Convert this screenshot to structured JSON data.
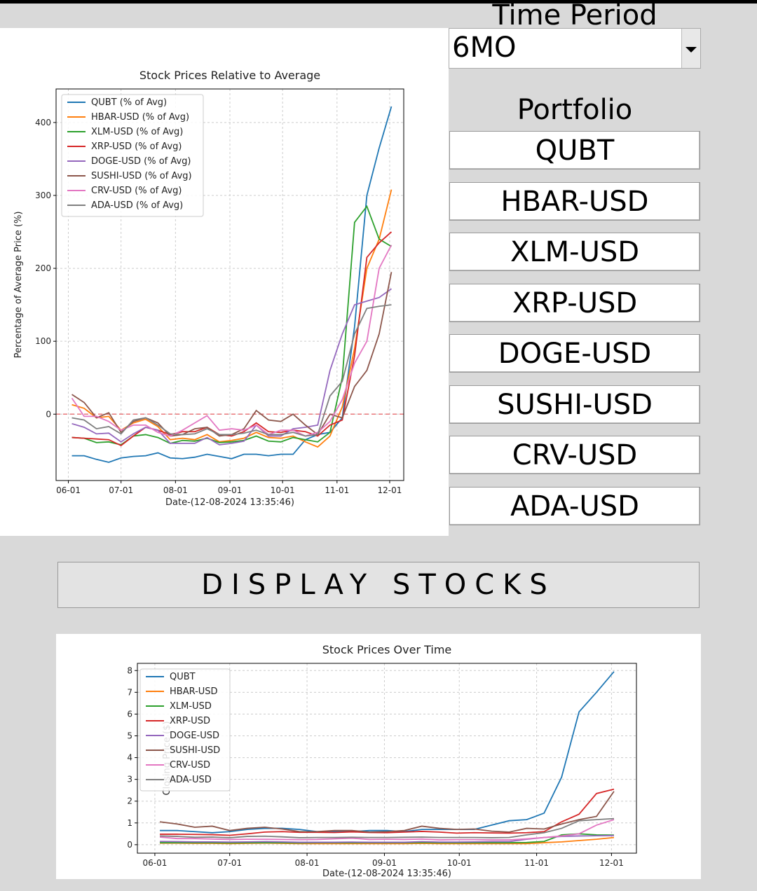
{
  "time_period": {
    "label": "Time Period",
    "selected": "6MO"
  },
  "portfolio": {
    "title": "Portfolio",
    "buttons": [
      "QUBT",
      "HBAR-USD",
      "XLM-USD",
      "XRP-USD",
      "DOGE-USD",
      "SUSHI-USD",
      "CRV-USD",
      "ADA-USD"
    ]
  },
  "display_button": "DISPLAY STOCKS",
  "chart_data": [
    {
      "type": "line",
      "title": "Stock Prices Relative to Average",
      "x_label": "Date-(12-08-2024 13:35:46)",
      "y_label": "Percentage of Average Price (%)",
      "x": [
        "06-03",
        "06-10",
        "06-17",
        "06-24",
        "07-01",
        "07-08",
        "07-15",
        "07-22",
        "07-29",
        "08-05",
        "08-12",
        "08-19",
        "08-26",
        "09-02",
        "09-09",
        "09-16",
        "09-23",
        "09-30",
        "10-07",
        "10-14",
        "10-21",
        "10-28",
        "11-04",
        "11-11",
        "11-18",
        "11-25",
        "12-02"
      ],
      "xlim": [
        "05-25",
        "12-09"
      ],
      "xticks": [
        "06-01",
        "07-01",
        "08-01",
        "09-01",
        "10-01",
        "11-01",
        "12-01"
      ],
      "ylim": [
        -91,
        446
      ],
      "yticks": [
        0,
        100,
        200,
        300,
        400
      ],
      "grid": true,
      "legend": "upper left",
      "reference_line": {
        "value": 0,
        "color": "#e8777a"
      },
      "series": [
        {
          "name": "QUBT (% of Avg)",
          "color": "#1f77b4",
          "values": [
            -57,
            -57,
            -62,
            -66,
            -60,
            -58,
            -57,
            -53,
            -60,
            -61,
            -59,
            -55,
            -58,
            -61,
            -55,
            -55,
            -57,
            -55,
            -55,
            -35,
            -28,
            -25,
            -5,
            120,
            300,
            365,
            422
          ]
        },
        {
          "name": "HBAR-USD (% of Avg)",
          "color": "#ff7f0e",
          "values": [
            13,
            8,
            -5,
            -3,
            -22,
            -12,
            -7,
            -17,
            -35,
            -33,
            -35,
            -28,
            -38,
            -36,
            -33,
            -25,
            -32,
            -33,
            -30,
            -38,
            -45,
            -30,
            10,
            90,
            200,
            240,
            308
          ]
        },
        {
          "name": "XLM-USD (% of Avg)",
          "color": "#2ca02c",
          "values": [
            -32,
            -33,
            -39,
            -38,
            -42,
            -30,
            -28,
            -32,
            -40,
            -36,
            -37,
            -33,
            -39,
            -38,
            -36,
            -30,
            -37,
            -38,
            -32,
            -35,
            -38,
            -25,
            50,
            263,
            285,
            240,
            230
          ]
        },
        {
          "name": "XRP-USD (% of Avg)",
          "color": "#d62728",
          "values": [
            -32,
            -33,
            -34,
            -35,
            -43,
            -30,
            -18,
            -22,
            -28,
            -24,
            -24,
            -18,
            -28,
            -30,
            -24,
            -12,
            -24,
            -25,
            -22,
            -24,
            -30,
            -15,
            -8,
            80,
            215,
            235,
            250
          ]
        },
        {
          "name": "DOGE-USD (% of Avg)",
          "color": "#9467bd",
          "values": [
            -13,
            -18,
            -27,
            -26,
            -38,
            -27,
            -18,
            -22,
            -40,
            -40,
            -40,
            -32,
            -42,
            -40,
            -37,
            -15,
            -30,
            -30,
            -20,
            -18,
            -15,
            60,
            110,
            150,
            155,
            160,
            172
          ]
        },
        {
          "name": "SUSHI-USD (% of Avg)",
          "color": "#8c564b",
          "values": [
            27,
            16,
            -5,
            2,
            -25,
            -10,
            -5,
            -12,
            -30,
            -28,
            -20,
            -18,
            -30,
            -28,
            -20,
            5,
            -8,
            -10,
            0,
            -15,
            -28,
            0,
            -5,
            38,
            60,
            110,
            195
          ]
        },
        {
          "name": "CRV-USD (% of Avg)",
          "color": "#e377c2",
          "values": [
            22,
            -3,
            -3,
            -10,
            -22,
            -15,
            -15,
            -25,
            -30,
            -22,
            -12,
            -2,
            -22,
            -20,
            -22,
            -15,
            -28,
            -22,
            -22,
            -30,
            -25,
            -10,
            20,
            70,
            100,
            200,
            232
          ]
        },
        {
          "name": "ADA-USD (% of Avg)",
          "color": "#7f7f7f",
          "values": [
            -5,
            -8,
            -20,
            -17,
            -27,
            -8,
            -5,
            -15,
            -27,
            -28,
            -27,
            -20,
            -28,
            -28,
            -26,
            -22,
            -28,
            -28,
            -25,
            -30,
            -28,
            25,
            45,
            110,
            145,
            148,
            150
          ]
        }
      ]
    },
    {
      "type": "line",
      "title": "Stock Prices Over Time",
      "x_label": "Date-(12-08-2024 13:35:46)",
      "y_label": "Closing Price ($)",
      "x": [
        "06-03",
        "06-10",
        "06-17",
        "06-24",
        "07-01",
        "07-08",
        "07-15",
        "07-22",
        "07-29",
        "08-05",
        "08-12",
        "08-19",
        "08-26",
        "09-02",
        "09-09",
        "09-16",
        "09-23",
        "09-30",
        "10-07",
        "10-14",
        "10-21",
        "10-28",
        "11-04",
        "11-11",
        "11-18",
        "11-25",
        "12-02"
      ],
      "xlim": [
        "05-25",
        "12-11"
      ],
      "xticks": [
        "06-01",
        "07-01",
        "08-01",
        "09-01",
        "10-01",
        "11-01",
        "12-01"
      ],
      "ylim": [
        -0.39,
        8.33
      ],
      "yticks": [
        0,
        1,
        2,
        3,
        4,
        5,
        6,
        7,
        8
      ],
      "grid": true,
      "legend": "upper left",
      "series": [
        {
          "name": "QUBT",
          "color": "#1f77b4",
          "values": [
            0.65,
            0.65,
            0.6,
            0.55,
            0.6,
            0.7,
            0.75,
            0.75,
            0.7,
            0.6,
            0.6,
            0.6,
            0.65,
            0.65,
            0.6,
            0.7,
            0.7,
            0.7,
            0.7,
            0.9,
            1.1,
            1.15,
            1.45,
            3.1,
            6.1,
            7.0,
            7.95
          ]
        },
        {
          "name": "HBAR-USD",
          "color": "#ff7f0e",
          "values": [
            0.07,
            0.07,
            0.06,
            0.06,
            0.05,
            0.06,
            0.07,
            0.06,
            0.05,
            0.05,
            0.05,
            0.05,
            0.05,
            0.05,
            0.05,
            0.06,
            0.05,
            0.05,
            0.05,
            0.05,
            0.05,
            0.05,
            0.09,
            0.13,
            0.19,
            0.25,
            0.33
          ]
        },
        {
          "name": "XLM-USD",
          "color": "#2ca02c",
          "values": [
            0.09,
            0.09,
            0.09,
            0.09,
            0.08,
            0.09,
            0.09,
            0.09,
            0.08,
            0.09,
            0.09,
            0.09,
            0.09,
            0.09,
            0.09,
            0.1,
            0.09,
            0.09,
            0.09,
            0.09,
            0.09,
            0.1,
            0.15,
            0.45,
            0.5,
            0.45,
            0.44
          ]
        },
        {
          "name": "XRP-USD",
          "color": "#d62728",
          "values": [
            0.48,
            0.48,
            0.47,
            0.46,
            0.43,
            0.5,
            0.58,
            0.6,
            0.57,
            0.57,
            0.56,
            0.59,
            0.56,
            0.55,
            0.58,
            0.61,
            0.58,
            0.53,
            0.55,
            0.54,
            0.53,
            0.55,
            0.6,
            1.05,
            1.4,
            2.35,
            2.55
          ]
        },
        {
          "name": "DOGE-USD",
          "color": "#9467bd",
          "values": [
            0.15,
            0.14,
            0.13,
            0.13,
            0.12,
            0.13,
            0.14,
            0.13,
            0.11,
            0.11,
            0.11,
            0.12,
            0.11,
            0.11,
            0.11,
            0.14,
            0.12,
            0.12,
            0.13,
            0.14,
            0.14,
            0.25,
            0.33,
            0.38,
            0.4,
            0.41,
            0.42
          ]
        },
        {
          "name": "SUSHI-USD",
          "color": "#8c564b",
          "values": [
            1.05,
            0.95,
            0.8,
            0.85,
            0.65,
            0.75,
            0.8,
            0.72,
            0.6,
            0.6,
            0.65,
            0.65,
            0.58,
            0.6,
            0.65,
            0.85,
            0.75,
            0.7,
            0.72,
            0.62,
            0.58,
            0.75,
            0.72,
            0.95,
            1.15,
            1.3,
            2.45
          ]
        },
        {
          "name": "CRV-USD",
          "color": "#e377c2",
          "values": [
            0.35,
            0.28,
            0.28,
            0.26,
            0.24,
            0.25,
            0.25,
            0.24,
            0.23,
            0.24,
            0.27,
            0.3,
            0.24,
            0.25,
            0.24,
            0.26,
            0.22,
            0.23,
            0.23,
            0.22,
            0.22,
            0.27,
            0.33,
            0.4,
            0.5,
            0.9,
            1.15
          ]
        },
        {
          "name": "ADA-USD",
          "color": "#7f7f7f",
          "values": [
            0.4,
            0.38,
            0.34,
            0.35,
            0.32,
            0.38,
            0.39,
            0.36,
            0.32,
            0.33,
            0.33,
            0.34,
            0.33,
            0.33,
            0.34,
            0.35,
            0.33,
            0.33,
            0.33,
            0.32,
            0.33,
            0.45,
            0.55,
            0.75,
            1.1,
            1.15,
            1.2
          ]
        }
      ]
    }
  ]
}
